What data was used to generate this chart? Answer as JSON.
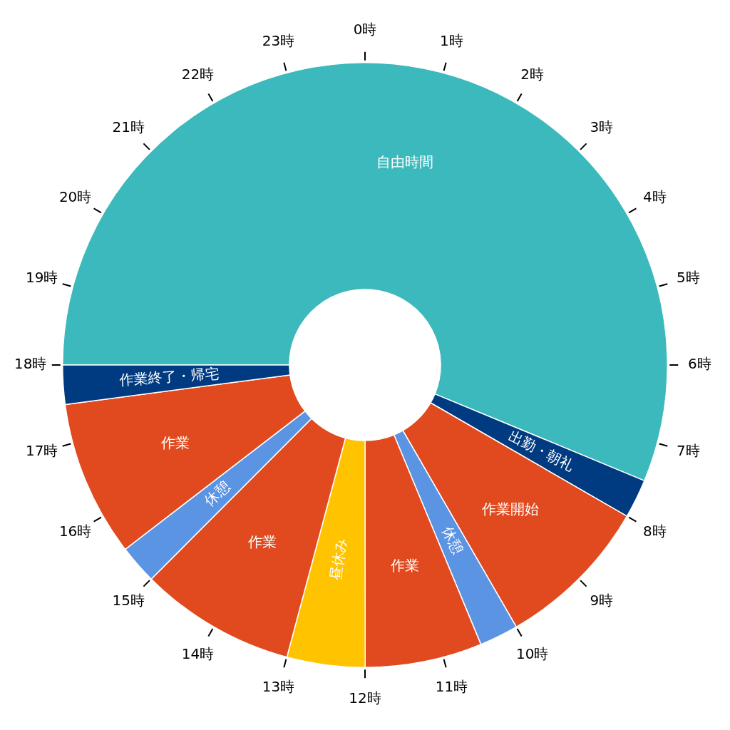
{
  "chart_data": {
    "type": "donut",
    "categories": [
      "自由時間",
      "出勤・朝礼",
      "作業開始",
      "休憩",
      "作業",
      "昼休み",
      "作業",
      "休憩",
      "作業",
      "作業終了・帰宅"
    ],
    "values": [
      56.25,
      2.08,
      8.33,
      2.08,
      6.25,
      4.17,
      8.33,
      2.08,
      8.34,
      2.09
    ],
    "colors": [
      "#3cb9bc",
      "#003a80",
      "#e04a1e",
      "#5b94e3",
      "#e04a1e",
      "#ffc300",
      "#e04a1e",
      "#5b94e3",
      "#e04a1e",
      "#003a80"
    ],
    "annotations": [
      "0時",
      "1時",
      "2時",
      "3時",
      "4時",
      "5時",
      "6時",
      "7時",
      "8時",
      "9時",
      "10時",
      "11時",
      "12時",
      "13時",
      "14時",
      "15時",
      "16時",
      "17時",
      "18時",
      "19時",
      "20時",
      "21時",
      "22時",
      "23時"
    ],
    "legend": false
  }
}
